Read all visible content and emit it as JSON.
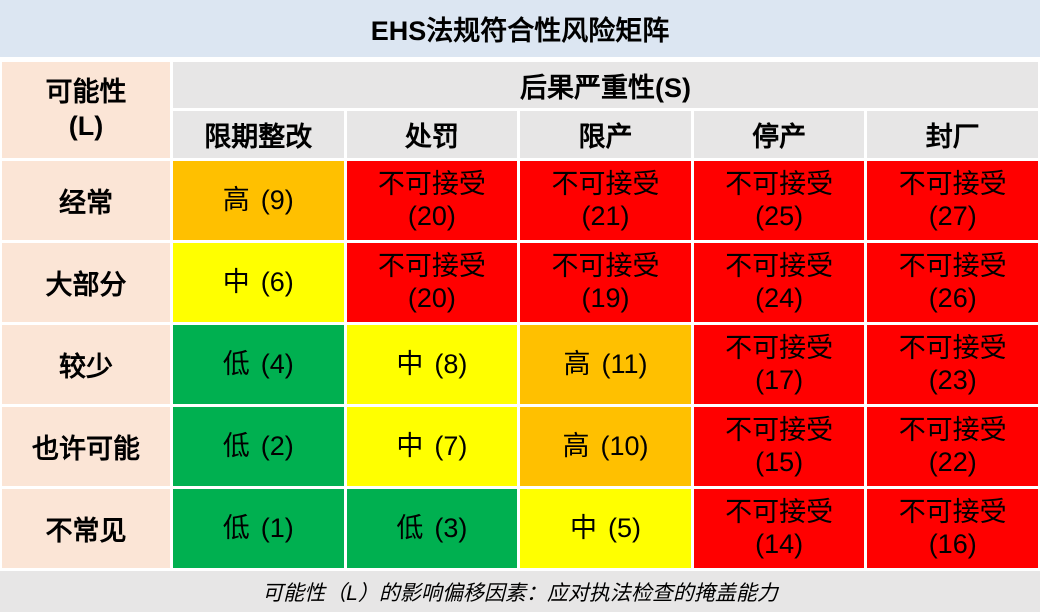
{
  "title": "EHS法规符合性风险矩阵",
  "colors": {
    "title_bg": "#DCE6F2",
    "header_bg": "#E7E6E6",
    "likelihood_bg": "#FBE5D6",
    "low": "#00B050",
    "medium": "#FFFF00",
    "high": "#FFC000",
    "unacceptable": "#FF0000",
    "footer_bg": "#E7E6E6",
    "text": "#000000"
  },
  "chart_data": {
    "type": "heatmap",
    "title": "EHS法规符合性风险矩阵",
    "severity_header": "后果严重性(S)",
    "likelihood_header": {
      "line1": "可能性",
      "line2": "(L)"
    },
    "x_categories": [
      "限期整改",
      "处罚",
      "限产",
      "停产",
      "封厂"
    ],
    "y_categories": [
      "经常",
      "大部分",
      "较少",
      "也许可能",
      "不常见"
    ],
    "legend": {
      "低": "#00B050",
      "中": "#FFFF00",
      "高": "#FFC000",
      "不可接受": "#FF0000"
    },
    "rows": [
      {
        "likelihood": "经常",
        "cells": [
          {
            "label": "高",
            "score": 9,
            "score_text": "(9)",
            "level": "high"
          },
          {
            "label": "不可接受",
            "score": 20,
            "score_text": "(20)",
            "level": "unacceptable"
          },
          {
            "label": "不可接受",
            "score": 21,
            "score_text": "(21)",
            "level": "unacceptable"
          },
          {
            "label": "不可接受",
            "score": 25,
            "score_text": "(25)",
            "level": "unacceptable"
          },
          {
            "label": "不可接受",
            "score": 27,
            "score_text": "(27)",
            "level": "unacceptable"
          }
        ]
      },
      {
        "likelihood": "大部分",
        "cells": [
          {
            "label": "中",
            "score": 6,
            "score_text": "(6)",
            "level": "medium"
          },
          {
            "label": "不可接受",
            "score": 20,
            "score_text": "(20)",
            "level": "unacceptable"
          },
          {
            "label": "不可接受",
            "score": 19,
            "score_text": "(19)",
            "level": "unacceptable"
          },
          {
            "label": "不可接受",
            "score": 24,
            "score_text": "(24)",
            "level": "unacceptable"
          },
          {
            "label": "不可接受",
            "score": 26,
            "score_text": "(26)",
            "level": "unacceptable"
          }
        ]
      },
      {
        "likelihood": "较少",
        "cells": [
          {
            "label": "低",
            "score": 4,
            "score_text": "(4)",
            "level": "low"
          },
          {
            "label": "中",
            "score": 8,
            "score_text": "(8)",
            "level": "medium"
          },
          {
            "label": "高",
            "score": 11,
            "score_text": "(11)",
            "level": "high"
          },
          {
            "label": "不可接受",
            "score": 17,
            "score_text": "(17)",
            "level": "unacceptable"
          },
          {
            "label": "不可接受",
            "score": 23,
            "score_text": "(23)",
            "level": "unacceptable"
          }
        ]
      },
      {
        "likelihood": "也许可能",
        "cells": [
          {
            "label": "低",
            "score": 2,
            "score_text": "(2)",
            "level": "low"
          },
          {
            "label": "中",
            "score": 7,
            "score_text": "(7)",
            "level": "medium"
          },
          {
            "label": "高",
            "score": 10,
            "score_text": "(10)",
            "level": "high"
          },
          {
            "label": "不可接受",
            "score": 15,
            "score_text": "(15)",
            "level": "unacceptable"
          },
          {
            "label": "不可接受",
            "score": 22,
            "score_text": "(22)",
            "level": "unacceptable"
          }
        ]
      },
      {
        "likelihood": "不常见",
        "cells": [
          {
            "label": "低",
            "score": 1,
            "score_text": "(1)",
            "level": "low"
          },
          {
            "label": "低",
            "score": 3,
            "score_text": "(3)",
            "level": "low"
          },
          {
            "label": "中",
            "score": 5,
            "score_text": "(5)",
            "level": "medium"
          },
          {
            "label": "不可接受",
            "score": 14,
            "score_text": "(14)",
            "level": "unacceptable"
          },
          {
            "label": "不可接受",
            "score": 16,
            "score_text": "(16)",
            "level": "unacceptable"
          }
        ]
      }
    ],
    "note": "可能性（L）的影响偏移因素：应对执法检查的掩盖能力"
  }
}
